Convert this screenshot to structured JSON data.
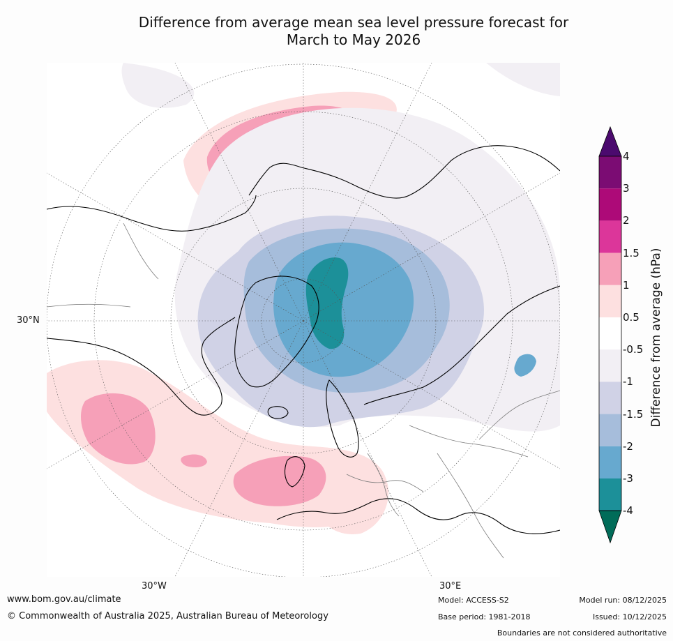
{
  "title": {
    "line1": "Difference from average mean sea level pressure forecast for",
    "line2": "March to May 2026"
  },
  "map": {
    "projection": "north polar stereographic",
    "labels": {
      "lat_30n": "30°N",
      "lon_30w": "30°W",
      "lon_30e": "30°E"
    }
  },
  "colorbar": {
    "title": "Difference from average (hPa)",
    "ticks": [
      "4",
      "3",
      "2",
      "1.5",
      "1",
      "0.5",
      "-0.5",
      "-1",
      "-1.5",
      "-2",
      "-3",
      "-4"
    ],
    "colors": {
      "gt4": "#4b0a6e",
      "p3_4": "#7b0c73",
      "p2_3": "#ad0a78",
      "p1_5_2": "#dc369a",
      "p1_1_5": "#f6a0b8",
      "p0_5_1": "#fde0e0",
      "neutral": "#ffffff",
      "m0_5_1": "#f2eff4",
      "m1_1_5": "#d0d2e6",
      "m1_5_2": "#a6bddb",
      "m2_3": "#67a9cf",
      "m3_4": "#1c9099",
      "lt_m4": "#016c59"
    }
  },
  "footer": {
    "website": "www.bom.gov.au/climate",
    "copyright": "© Commonwealth of Australia 2025, Australian Bureau of Meteorology",
    "model": "Model: ACCESS-S2",
    "base_period": "Base period: 1981-2018",
    "model_run": "Model run: 08/12/2025",
    "issued": "Issued: 10/12/2025",
    "disclaimer": "Boundaries are not considered authoritative"
  }
}
